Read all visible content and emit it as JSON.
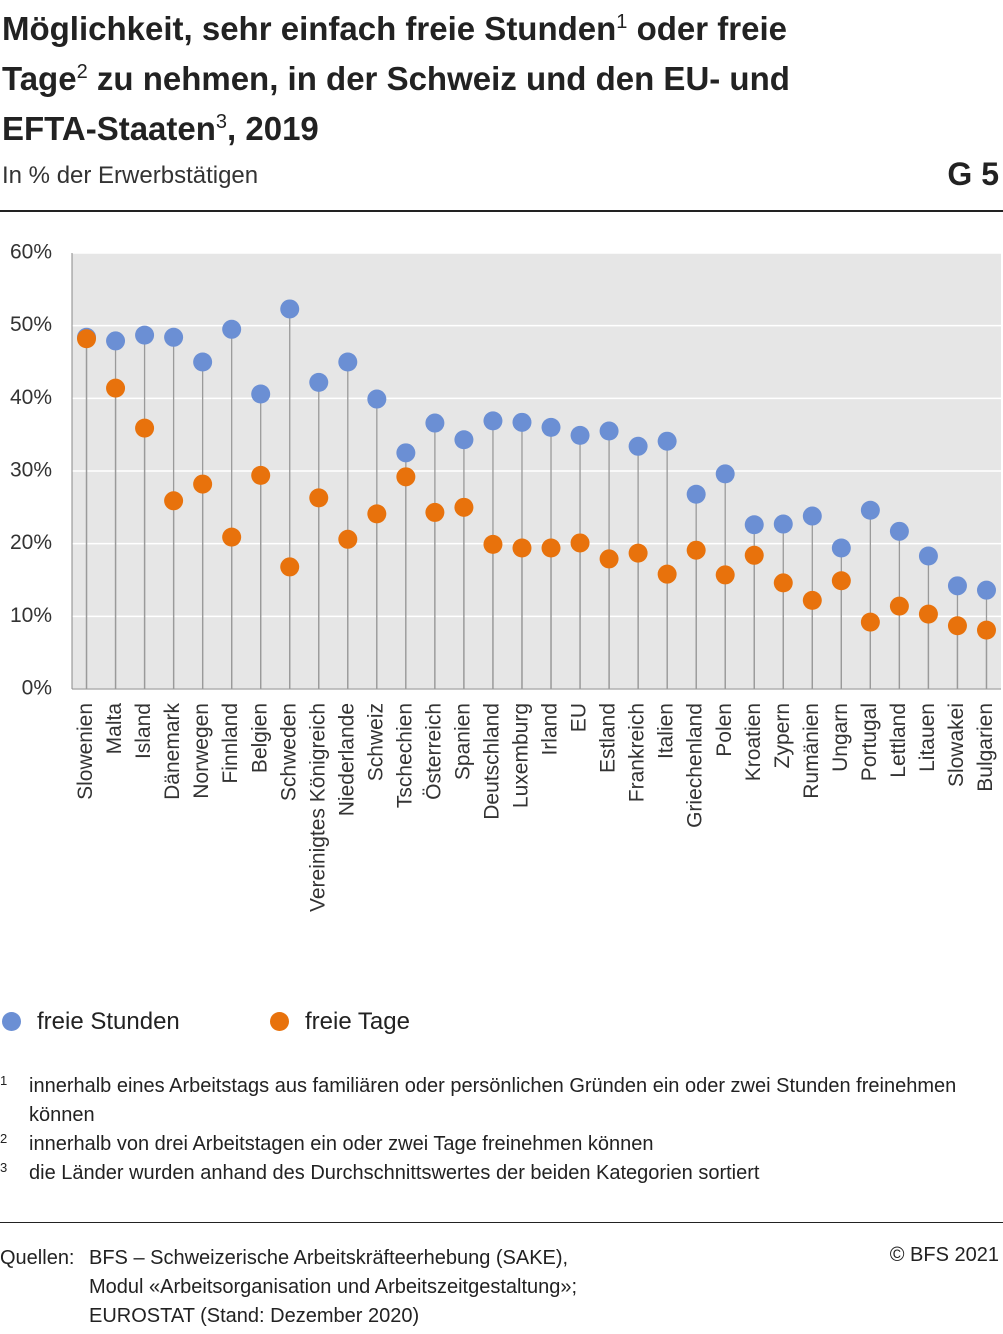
{
  "chart_data": {
    "type": "lollipop",
    "title": [
      "Möglichkeit, sehr einfach freie Stunden",
      "1",
      " oder freie Tage",
      "2",
      " zu nehmen, in der Schweiz und den EU- und EFTA-Staaten",
      "3",
      ", 2019"
    ],
    "subtitle": "In % der Erwerbstätigen",
    "figure_label": "G 5",
    "categories": [
      "Slowenien",
      "Malta",
      "Island",
      "Dänemark",
      "Norwegen",
      "Finnland",
      "Belgien",
      "Schweden",
      "Vereinigtes Königreich",
      "Niederlande",
      "Schweiz",
      "Tschechien",
      "Österreich",
      "Spanien",
      "Deutschland",
      "Luxemburg",
      "Irland",
      "EU",
      "Estland",
      "Frankreich",
      "Italien",
      "Griechenland",
      "Polen",
      "Kroatien",
      "Zypern",
      "Rumänien",
      "Ungarn",
      "Portugal",
      "Lettland",
      "Litauen",
      "Slowakei",
      "Bulgarien"
    ],
    "series": [
      {
        "name": "freie Stunden",
        "color": "#6b8fd4",
        "values": [
          48.4,
          47.9,
          48.7,
          48.4,
          45.0,
          49.5,
          40.6,
          52.3,
          42.2,
          45.0,
          39.9,
          32.5,
          36.6,
          34.3,
          36.9,
          36.7,
          36.0,
          34.9,
          35.5,
          33.4,
          34.1,
          26.8,
          29.6,
          22.6,
          22.7,
          23.8,
          19.4,
          24.6,
          21.7,
          18.3,
          14.2,
          13.6
        ]
      },
      {
        "name": "freie Tage",
        "color": "#e8720c",
        "values": [
          48.2,
          41.4,
          35.9,
          25.9,
          28.2,
          20.9,
          29.4,
          16.8,
          26.3,
          20.6,
          24.1,
          29.2,
          24.3,
          25.0,
          19.9,
          19.4,
          19.4,
          20.1,
          17.9,
          18.7,
          15.8,
          19.1,
          15.7,
          18.4,
          14.6,
          12.2,
          14.9,
          9.2,
          11.4,
          10.3,
          8.7,
          8.1
        ]
      }
    ],
    "ylim": [
      0,
      60
    ],
    "yticks": [
      {
        "value": 0,
        "label": "0%"
      },
      {
        "value": 10,
        "label": "10%"
      },
      {
        "value": 20,
        "label": "20%"
      },
      {
        "value": 30,
        "label": "30%"
      },
      {
        "value": 40,
        "label": "40%"
      },
      {
        "value": 50,
        "label": "50%"
      },
      {
        "value": 60,
        "label": "60%"
      }
    ],
    "grid": true
  },
  "footnotes": [
    {
      "mark": "1",
      "text": "innerhalb eines Arbeitstags aus familiären oder persönlichen Gründen ein oder zwei Stunden freinehmen können"
    },
    {
      "mark": "2",
      "text": "innerhalb von drei Arbeitstagen ein oder zwei Tage freinehmen können"
    },
    {
      "mark": "3",
      "text": "die Länder wurden anhand des Durchschnittswertes der beiden Kategorien sortiert"
    }
  ],
  "source": {
    "label": "Quellen:",
    "lines": [
      "BFS – Schweizerische Arbeitskräfteerhebung (SAKE),",
      "Modul «Arbeitsorganisation und Arbeitszeitgestaltung»;",
      "EUROSTAT (Stand: Dezember 2020)"
    ],
    "copyright": "© BFS 2021"
  }
}
